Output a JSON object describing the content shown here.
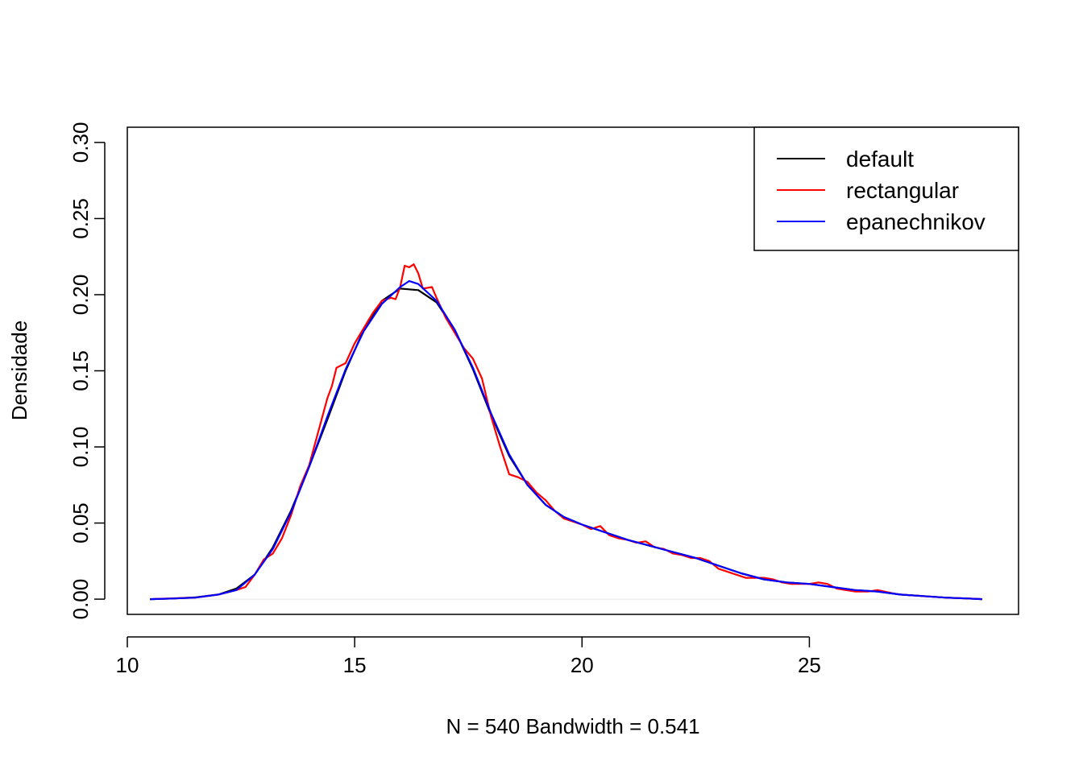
{
  "chart_data": {
    "type": "line",
    "title": "",
    "xlabel": "N = 540   Bandwidth = 0.541",
    "ylabel": "Densidade",
    "xlim": [
      10,
      29.6
    ],
    "ylim": [
      -0.01,
      0.31
    ],
    "x_ticks": [
      10,
      15,
      20,
      25
    ],
    "x_tick_labels": [
      "10",
      "15",
      "20",
      "25"
    ],
    "y_ticks": [
      0,
      0.05,
      0.1,
      0.15,
      0.2,
      0.25,
      0.3
    ],
    "y_tick_labels": [
      "0.00",
      "0.05",
      "0.10",
      "0.15",
      "0.20",
      "0.25",
      "0.30"
    ],
    "grid": false,
    "legend_position": "top-right",
    "series": [
      {
        "name": "default",
        "color": "#000000",
        "points": [
          [
            10.5,
            0.0
          ],
          [
            11.0,
            0.0004
          ],
          [
            11.5,
            0.0012
          ],
          [
            12.0,
            0.003
          ],
          [
            12.4,
            0.007
          ],
          [
            12.8,
            0.016
          ],
          [
            13.2,
            0.034
          ],
          [
            13.6,
            0.058
          ],
          [
            14.0,
            0.087
          ],
          [
            14.4,
            0.118
          ],
          [
            14.8,
            0.15
          ],
          [
            15.2,
            0.177
          ],
          [
            15.6,
            0.196
          ],
          [
            16.0,
            0.204
          ],
          [
            16.4,
            0.203
          ],
          [
            16.8,
            0.195
          ],
          [
            17.2,
            0.177
          ],
          [
            17.6,
            0.151
          ],
          [
            18.0,
            0.121
          ],
          [
            18.4,
            0.094
          ],
          [
            18.8,
            0.075
          ],
          [
            19.2,
            0.062
          ],
          [
            19.6,
            0.054
          ],
          [
            20.0,
            0.049
          ],
          [
            20.5,
            0.044
          ],
          [
            21.0,
            0.039
          ],
          [
            21.5,
            0.035
          ],
          [
            22.0,
            0.031
          ],
          [
            22.5,
            0.027
          ],
          [
            23.0,
            0.022
          ],
          [
            23.5,
            0.017
          ],
          [
            24.0,
            0.013
          ],
          [
            24.5,
            0.011
          ],
          [
            25.0,
            0.01
          ],
          [
            25.5,
            0.008
          ],
          [
            26.0,
            0.006
          ],
          [
            26.5,
            0.005
          ],
          [
            27.0,
            0.003
          ],
          [
            27.5,
            0.002
          ],
          [
            28.0,
            0.001
          ],
          [
            28.5,
            0.0004
          ],
          [
            28.8,
            0.0
          ]
        ]
      },
      {
        "name": "rectangular",
        "color": "#ff0000",
        "points": [
          [
            10.5,
            0.0
          ],
          [
            11.0,
            0.0005
          ],
          [
            11.5,
            0.001
          ],
          [
            12.0,
            0.003
          ],
          [
            12.4,
            0.006
          ],
          [
            12.6,
            0.008
          ],
          [
            12.8,
            0.016
          ],
          [
            13.0,
            0.026
          ],
          [
            13.2,
            0.03
          ],
          [
            13.4,
            0.04
          ],
          [
            13.6,
            0.055
          ],
          [
            13.8,
            0.074
          ],
          [
            14.0,
            0.088
          ],
          [
            14.2,
            0.11
          ],
          [
            14.4,
            0.132
          ],
          [
            14.5,
            0.14
          ],
          [
            14.6,
            0.152
          ],
          [
            14.8,
            0.155
          ],
          [
            15.0,
            0.168
          ],
          [
            15.2,
            0.178
          ],
          [
            15.4,
            0.188
          ],
          [
            15.6,
            0.196
          ],
          [
            15.8,
            0.198
          ],
          [
            15.9,
            0.197
          ],
          [
            16.0,
            0.205
          ],
          [
            16.1,
            0.219
          ],
          [
            16.2,
            0.218
          ],
          [
            16.3,
            0.22
          ],
          [
            16.4,
            0.214
          ],
          [
            16.5,
            0.204
          ],
          [
            16.7,
            0.205
          ],
          [
            16.8,
            0.198
          ],
          [
            17.0,
            0.185
          ],
          [
            17.2,
            0.175
          ],
          [
            17.4,
            0.165
          ],
          [
            17.6,
            0.158
          ],
          [
            17.8,
            0.145
          ],
          [
            18.0,
            0.12
          ],
          [
            18.2,
            0.1
          ],
          [
            18.4,
            0.082
          ],
          [
            18.6,
            0.08
          ],
          [
            18.8,
            0.077
          ],
          [
            19.0,
            0.07
          ],
          [
            19.2,
            0.065
          ],
          [
            19.4,
            0.058
          ],
          [
            19.6,
            0.053
          ],
          [
            19.8,
            0.051
          ],
          [
            20.0,
            0.049
          ],
          [
            20.2,
            0.046
          ],
          [
            20.4,
            0.048
          ],
          [
            20.6,
            0.042
          ],
          [
            20.8,
            0.04
          ],
          [
            21.0,
            0.039
          ],
          [
            21.2,
            0.037
          ],
          [
            21.4,
            0.038
          ],
          [
            21.6,
            0.034
          ],
          [
            21.8,
            0.033
          ],
          [
            22.0,
            0.03
          ],
          [
            22.2,
            0.029
          ],
          [
            22.4,
            0.027
          ],
          [
            22.6,
            0.027
          ],
          [
            22.8,
            0.025
          ],
          [
            23.0,
            0.02
          ],
          [
            23.2,
            0.018
          ],
          [
            23.4,
            0.016
          ],
          [
            23.6,
            0.014
          ],
          [
            23.8,
            0.014
          ],
          [
            24.0,
            0.014
          ],
          [
            24.2,
            0.013
          ],
          [
            24.4,
            0.011
          ],
          [
            24.6,
            0.01
          ],
          [
            24.8,
            0.01
          ],
          [
            25.0,
            0.01
          ],
          [
            25.2,
            0.011
          ],
          [
            25.4,
            0.01
          ],
          [
            25.6,
            0.007
          ],
          [
            25.8,
            0.006
          ],
          [
            26.0,
            0.005
          ],
          [
            26.3,
            0.005
          ],
          [
            26.5,
            0.006
          ],
          [
            26.8,
            0.004
          ],
          [
            27.0,
            0.003
          ],
          [
            27.5,
            0.002
          ],
          [
            28.0,
            0.001
          ],
          [
            28.5,
            0.0004
          ],
          [
            28.8,
            0.0
          ]
        ]
      },
      {
        "name": "epanechnikov",
        "color": "#0000ff",
        "points": [
          [
            10.5,
            0.0
          ],
          [
            11.0,
            0.0004
          ],
          [
            11.5,
            0.001
          ],
          [
            12.0,
            0.003
          ],
          [
            12.4,
            0.006
          ],
          [
            12.8,
            0.016
          ],
          [
            13.2,
            0.033
          ],
          [
            13.6,
            0.057
          ],
          [
            14.0,
            0.087
          ],
          [
            14.4,
            0.12
          ],
          [
            14.8,
            0.151
          ],
          [
            15.2,
            0.176
          ],
          [
            15.6,
            0.194
          ],
          [
            16.0,
            0.205
          ],
          [
            16.2,
            0.209
          ],
          [
            16.4,
            0.207
          ],
          [
            16.8,
            0.196
          ],
          [
            17.2,
            0.177
          ],
          [
            17.6,
            0.152
          ],
          [
            18.0,
            0.122
          ],
          [
            18.4,
            0.095
          ],
          [
            18.8,
            0.075
          ],
          [
            19.2,
            0.062
          ],
          [
            19.6,
            0.054
          ],
          [
            20.0,
            0.049
          ],
          [
            20.5,
            0.044
          ],
          [
            21.0,
            0.039
          ],
          [
            21.5,
            0.035
          ],
          [
            22.0,
            0.031
          ],
          [
            22.5,
            0.027
          ],
          [
            23.0,
            0.022
          ],
          [
            23.5,
            0.017
          ],
          [
            24.0,
            0.013
          ],
          [
            24.5,
            0.011
          ],
          [
            25.0,
            0.01
          ],
          [
            25.5,
            0.008
          ],
          [
            26.0,
            0.006
          ],
          [
            26.5,
            0.005
          ],
          [
            27.0,
            0.003
          ],
          [
            27.5,
            0.002
          ],
          [
            28.0,
            0.001
          ],
          [
            28.5,
            0.0004
          ],
          [
            28.8,
            0.0
          ]
        ]
      }
    ]
  }
}
